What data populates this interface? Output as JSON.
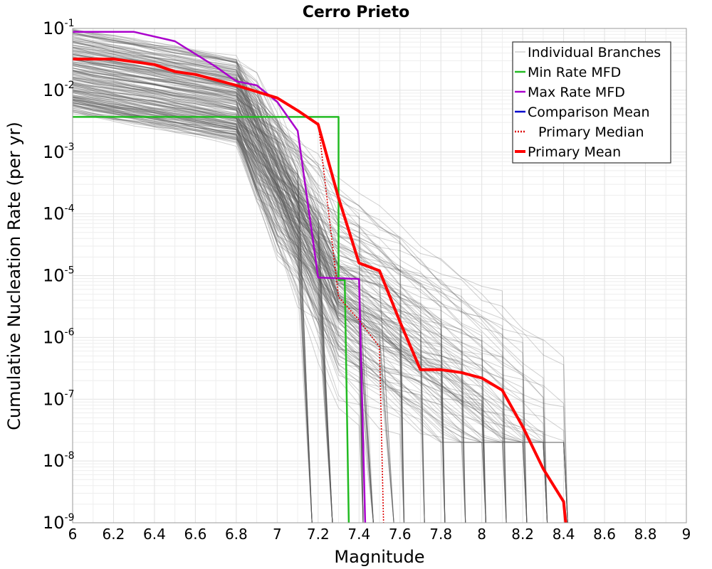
{
  "chart_data": {
    "type": "line",
    "title": "Cerro Prieto",
    "xlabel": "Magnitude",
    "ylabel": "Cumulative Nucleation Rate (per yr)",
    "xlim": [
      6,
      9
    ],
    "ylim_log10": [
      -9,
      -1
    ],
    "y_scale": "log",
    "x_ticks": [
      "6",
      "6.2",
      "6.4",
      "6.6",
      "6.8",
      "7",
      "7.2",
      "7.4",
      "7.6",
      "7.8",
      "8",
      "8.2",
      "8.4",
      "8.6",
      "8.8",
      "9"
    ],
    "y_tick_base": "10",
    "y_tick_exponents": [
      "-1",
      "-2",
      "-3",
      "-4",
      "-5",
      "-6",
      "-7",
      "-8",
      "-9"
    ],
    "grid": true,
    "legend_position": "top-right",
    "series": [
      {
        "name": "Individual Branches",
        "color": "#555555",
        "style": "thin-band",
        "note_visible": false,
        "band_upper": [
          [
            6.0,
            0.09
          ],
          [
            6.5,
            0.06
          ],
          [
            7.0,
            0.012
          ],
          [
            7.3,
            0.0035
          ],
          [
            7.5,
            5e-05
          ],
          [
            8.0,
            1.2e-06
          ],
          [
            8.4,
            3e-07
          ]
        ],
        "band_lower": [
          [
            6.0,
            0.006
          ],
          [
            6.9,
            0.004
          ],
          [
            7.1,
            0.0008
          ],
          [
            7.15,
            1e-06
          ]
        ]
      },
      {
        "name": "Min Rate MFD",
        "color": "#22bb22",
        "points": [
          [
            6.0,
            0.0037
          ],
          [
            7.3,
            0.0037
          ],
          [
            7.3,
            8.5e-06
          ],
          [
            7.33,
            8.5e-06
          ],
          [
            7.35,
            1e-09
          ]
        ]
      },
      {
        "name": "Max Rate MFD",
        "color": "#aa00cc",
        "points": [
          [
            6.0,
            0.088
          ],
          [
            6.3,
            0.088
          ],
          [
            6.5,
            0.062
          ],
          [
            6.7,
            0.024
          ],
          [
            6.8,
            0.014
          ],
          [
            6.9,
            0.012
          ],
          [
            7.0,
            0.0065
          ],
          [
            7.1,
            0.0022
          ],
          [
            7.2,
            9.3e-06
          ],
          [
            7.4,
            8.8e-06
          ],
          [
            7.43,
            1e-09
          ]
        ]
      },
      {
        "name": "Comparison Mean",
        "color": "#0000cc",
        "points": [
          [
            7.7,
            3e-07
          ],
          [
            7.8,
            3e-07
          ],
          [
            7.9,
            2.7e-07
          ],
          [
            8.0,
            2.2e-07
          ],
          [
            8.1,
            1.4e-07
          ],
          [
            8.2,
            3.6e-08
          ],
          [
            8.3,
            7.5e-09
          ],
          [
            8.4,
            2.2e-09
          ],
          [
            8.41,
            1e-09
          ]
        ]
      },
      {
        "name": "Primary Median",
        "color": "#dd0000",
        "style": "dotted",
        "points": [
          [
            7.2,
            0.003
          ],
          [
            7.3,
            4.5e-06
          ],
          [
            7.4,
            1.9e-06
          ],
          [
            7.5,
            7e-07
          ],
          [
            7.52,
            1e-09
          ]
        ]
      },
      {
        "name": "Primary Mean",
        "color": "#ff0000",
        "points": [
          [
            6.0,
            0.032
          ],
          [
            6.2,
            0.032
          ],
          [
            6.4,
            0.026
          ],
          [
            6.5,
            0.02
          ],
          [
            6.6,
            0.018
          ],
          [
            6.8,
            0.012
          ],
          [
            7.0,
            0.0075
          ],
          [
            7.1,
            0.0047
          ],
          [
            7.2,
            0.0028
          ],
          [
            7.3,
            0.00018
          ],
          [
            7.4,
            1.6e-05
          ],
          [
            7.5,
            1.2e-05
          ],
          [
            7.6,
            1.8e-06
          ],
          [
            7.7,
            3e-07
          ],
          [
            7.8,
            3e-07
          ],
          [
            7.9,
            2.7e-07
          ],
          [
            8.0,
            2.2e-07
          ],
          [
            8.1,
            1.4e-07
          ],
          [
            8.2,
            3.6e-08
          ],
          [
            8.3,
            7.5e-09
          ],
          [
            8.4,
            2.2e-09
          ],
          [
            8.41,
            1e-09
          ]
        ]
      }
    ]
  }
}
